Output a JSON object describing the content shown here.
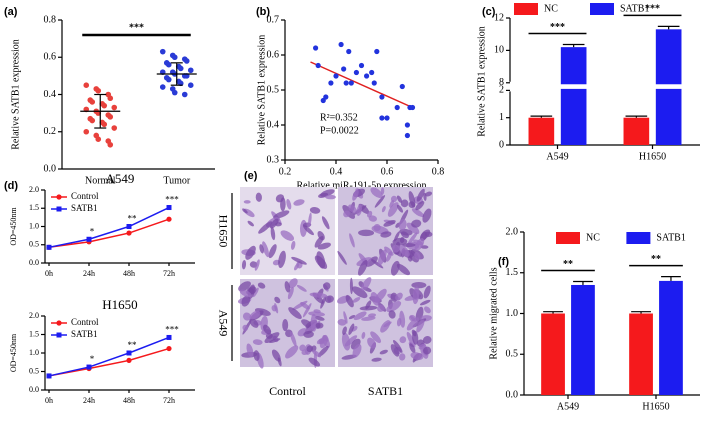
{
  "chart_data": [
    {
      "type": "dotplot",
      "panel_label": "(a)",
      "ylabel": "Relative SATB1 expression",
      "categories": [
        "Normal",
        "Tumor"
      ],
      "colors": [
        "#e8413c",
        "#2a3bd6"
      ],
      "values": [
        [
          0.45,
          0.43,
          0.42,
          0.4,
          0.38,
          0.37,
          0.36,
          0.35,
          0.34,
          0.33,
          0.32,
          0.31,
          0.3,
          0.29,
          0.28,
          0.27,
          0.26,
          0.25,
          0.24,
          0.22,
          0.2,
          0.18,
          0.16,
          0.15,
          0.13
        ],
        [
          0.63,
          0.61,
          0.6,
          0.59,
          0.58,
          0.57,
          0.56,
          0.55,
          0.54,
          0.53,
          0.52,
          0.52,
          0.51,
          0.5,
          0.5,
          0.49,
          0.48,
          0.47,
          0.46,
          0.45,
          0.44,
          0.43,
          0.41,
          0.4
        ]
      ],
      "mean": [
        0.31,
        0.51
      ],
      "sd": [
        0.09,
        0.06
      ],
      "significance": "***",
      "ylim": [
        0,
        0.8
      ],
      "yticks": [
        {
          "value": 0,
          "label": "0.0"
        },
        0.2,
        0.4,
        0.6,
        0.8
      ]
    },
    {
      "type": "scatter",
      "panel_label": "(b)",
      "ylabel": "Relative SATB1 expression",
      "xlabel": "Relative miR-191-5p expression",
      "color": "#2233dd",
      "x": [
        0.32,
        0.33,
        0.35,
        0.36,
        0.38,
        0.4,
        0.42,
        0.43,
        0.44,
        0.45,
        0.46,
        0.48,
        0.5,
        0.52,
        0.54,
        0.55,
        0.56,
        0.58,
        0.58,
        0.6,
        0.64,
        0.66,
        0.68,
        0.68,
        0.69,
        0.7
      ],
      "y": [
        0.62,
        0.57,
        0.47,
        0.48,
        0.52,
        0.54,
        0.63,
        0.56,
        0.52,
        0.61,
        0.52,
        0.55,
        0.57,
        0.54,
        0.55,
        0.52,
        0.61,
        0.48,
        0.42,
        0.42,
        0.45,
        0.51,
        0.4,
        0.37,
        0.45,
        0.45
      ],
      "trendline": {
        "color": "#e02020",
        "x": [
          0.3,
          0.7
        ],
        "y": [
          0.58,
          0.45
        ]
      },
      "annotations": [
        "R²=0.352",
        "P=0.0022"
      ],
      "xlim": [
        0.2,
        0.8
      ],
      "xticks": [
        0.2,
        0.4,
        0.6,
        0.8
      ],
      "ylim": [
        0.3,
        0.7
      ],
      "yticks": [
        0.3,
        0.4,
        0.5,
        0.6,
        0.7
      ]
    },
    {
      "type": "bar",
      "panel_label": "(c)",
      "ylabel": "Relative SATB1 expression",
      "legend": "top",
      "categories": [
        "A549",
        "H1650"
      ],
      "series": [
        {
          "name": "NC",
          "color": "#f5191c",
          "values": [
            1,
            1
          ],
          "errors": [
            0.02,
            0.02
          ]
        },
        {
          "name": "SATB1",
          "color": "#1c1cf0",
          "values": [
            10.2,
            11.3
          ],
          "errors": [
            0.1,
            0.12
          ]
        }
      ],
      "significance": [
        "***",
        "***"
      ],
      "ylim": [
        0,
        12
      ],
      "axis_break": [
        2,
        8
      ],
      "yticks": [
        0,
        1,
        2,
        8,
        10,
        12
      ]
    },
    {
      "type": "line",
      "panel_label": "(d)",
      "title": "A549",
      "ylabel": "OD=450nm",
      "categories": [
        "0h",
        "24h",
        "48h",
        "72h"
      ],
      "series": [
        {
          "name": "Control",
          "color": "#f5191c",
          "marker": "circle",
          "values": [
            0.43,
            0.58,
            0.82,
            1.2
          ]
        },
        {
          "name": "SATB1",
          "color": "#1c1cf0",
          "marker": "square",
          "values": [
            0.43,
            0.65,
            1.0,
            1.52
          ]
        }
      ],
      "significance": [
        null,
        "*",
        "**",
        "***"
      ],
      "ylim": [
        0,
        2
      ],
      "yticks": [
        {
          "value": 0,
          "label": "0.0"
        },
        0.5,
        {
          "value": 1,
          "label": "1.0"
        },
        1.5,
        {
          "value": 2,
          "label": "2.0"
        }
      ]
    },
    {
      "type": "line",
      "title": "H1650",
      "ylabel": "OD=450nm",
      "categories": [
        "0h",
        "24h",
        "48h",
        "72h"
      ],
      "series": [
        {
          "name": "Control",
          "color": "#f5191c",
          "marker": "circle",
          "values": [
            0.38,
            0.58,
            0.8,
            1.12
          ]
        },
        {
          "name": "SATB1",
          "color": "#1c1cf0",
          "marker": "square",
          "values": [
            0.38,
            0.62,
            1.0,
            1.42
          ]
        }
      ],
      "significance": [
        null,
        "*",
        "**",
        "***"
      ],
      "ylim": [
        0,
        2
      ],
      "yticks": [
        {
          "value": 0,
          "label": "0.0"
        },
        0.5,
        {
          "value": 1,
          "label": "1.0"
        },
        1.5,
        {
          "value": 2,
          "label": "2.0"
        }
      ]
    },
    {
      "type": "bar",
      "panel_label": "(f)",
      "ylabel": "Relative migrated cells",
      "legend": "inside-top",
      "categories": [
        "A549",
        "H1650"
      ],
      "series": [
        {
          "name": "NC",
          "color": "#f5191c",
          "values": [
            1.0,
            1.0
          ],
          "errors": [
            0.01,
            0.01
          ]
        },
        {
          "name": "SATB1",
          "color": "#1c1cf0",
          "values": [
            1.35,
            1.4
          ],
          "errors": [
            0.03,
            0.04
          ]
        }
      ],
      "significance": [
        "**",
        "**"
      ],
      "ylim": [
        0,
        2
      ],
      "yticks": [
        {
          "value": 0,
          "label": "0.0"
        },
        0.5,
        {
          "value": 1,
          "label": "1.0"
        },
        1.5,
        {
          "value": 2,
          "label": "2.0"
        }
      ]
    }
  ],
  "image_panel": {
    "panel_label": "(e)",
    "row_labels": [
      "H1650",
      "A549"
    ],
    "column_labels": [
      "Control",
      "SATB1"
    ]
  }
}
